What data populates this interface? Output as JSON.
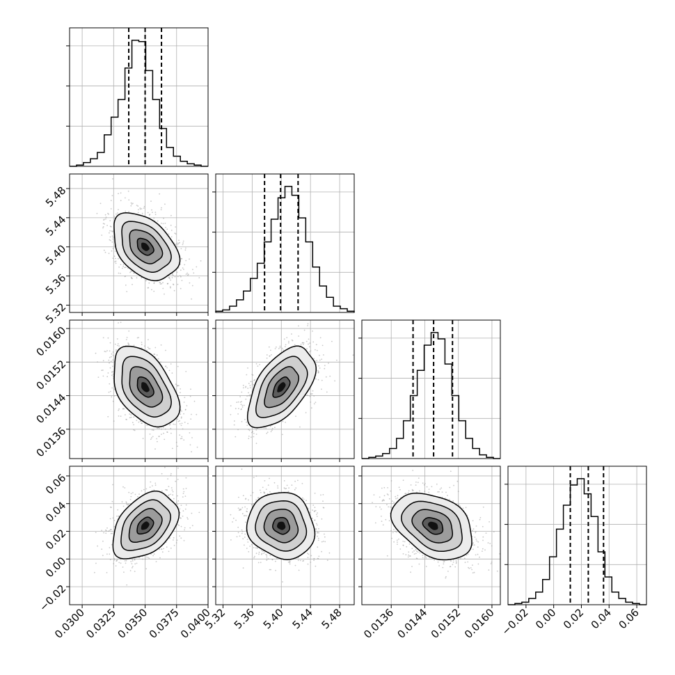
{
  "chart_data": {
    "type": "corner",
    "grid": true,
    "n_params": 4,
    "quantile_lines": "dashed 16th / 50th / 84th percentiles",
    "params": [
      {
        "range": [
          0.029,
          0.04
        ],
        "ticks": [
          0.03,
          0.0325,
          0.035,
          0.0375,
          0.04
        ],
        "tick_labels": [
          "0.0300",
          "0.0325",
          "0.0350",
          "0.0375",
          "0.0400"
        ],
        "quantiles": [
          0.0337,
          0.035,
          0.0363
        ],
        "mean": 0.035,
        "sd": 0.0013
      },
      {
        "range": [
          5.31,
          5.5
        ],
        "ticks": [
          5.32,
          5.36,
          5.4,
          5.44,
          5.48
        ],
        "tick_labels": [
          "5.32",
          "5.36",
          "5.40",
          "5.44",
          "5.48"
        ],
        "quantiles": [
          5.377,
          5.399,
          5.423
        ],
        "mean": 5.4,
        "sd": 0.023
      },
      {
        "range": [
          0.0129,
          0.0162
        ],
        "ticks": [
          0.0136,
          0.0144,
          0.0152,
          0.016
        ],
        "tick_labels": [
          "0.0136",
          "0.0144",
          "0.0152",
          "0.0160"
        ],
        "quantiles": [
          0.01412,
          0.01461,
          0.01506
        ],
        "mean": 0.0146,
        "sd": 0.00048
      },
      {
        "range": [
          -0.033,
          0.067
        ],
        "ticks": [
          -0.02,
          0.0,
          0.02,
          0.04,
          0.06
        ],
        "tick_labels": [
          "−0.02",
          "0.00",
          "0.02",
          "0.04",
          "0.06"
        ],
        "quantiles": [
          0.012,
          0.025,
          0.036
        ],
        "mean": 0.024,
        "sd": 0.012
      }
    ],
    "histograms": [
      {
        "bins": 20,
        "counts": [
          0,
          1,
          3,
          6,
          11,
          25,
          39,
          53,
          78,
          100,
          99,
          76,
          53,
          30,
          15,
          8,
          4,
          2,
          1,
          0
        ]
      },
      {
        "bins": 20,
        "counts": [
          1,
          2,
          5,
          10,
          17,
          27,
          39,
          56,
          74,
          91,
          100,
          93,
          75,
          56,
          36,
          21,
          12,
          5,
          3,
          1
        ]
      },
      {
        "bins": 20,
        "counts": [
          0,
          1,
          2,
          4,
          8,
          16,
          30,
          50,
          70,
          90,
          100,
          95,
          75,
          50,
          30,
          16,
          8,
          3,
          1,
          0
        ]
      },
      {
        "bins": 20,
        "counts": [
          0,
          1,
          2,
          5,
          10,
          20,
          38,
          60,
          79,
          95,
          100,
          88,
          70,
          42,
          22,
          10,
          5,
          2,
          1,
          0
        ]
      }
    ],
    "correlations": [
      {
        "x": 0,
        "y": 1,
        "rho": -0.4
      },
      {
        "x": 0,
        "y": 2,
        "rho": -0.45
      },
      {
        "x": 1,
        "y": 2,
        "rho": 0.55
      },
      {
        "x": 0,
        "y": 3,
        "rho": 0.4
      },
      {
        "x": 1,
        "y": 3,
        "rho": -0.1
      },
      {
        "x": 2,
        "y": 3,
        "rho": -0.35
      }
    ]
  },
  "colors": {
    "background": "#ffffff",
    "axes_frame": "#000000",
    "grid": "#b0b0b0",
    "histogram_line": "#000000",
    "contour_line": "#000000",
    "scatter_points": "#9a9a9a"
  }
}
